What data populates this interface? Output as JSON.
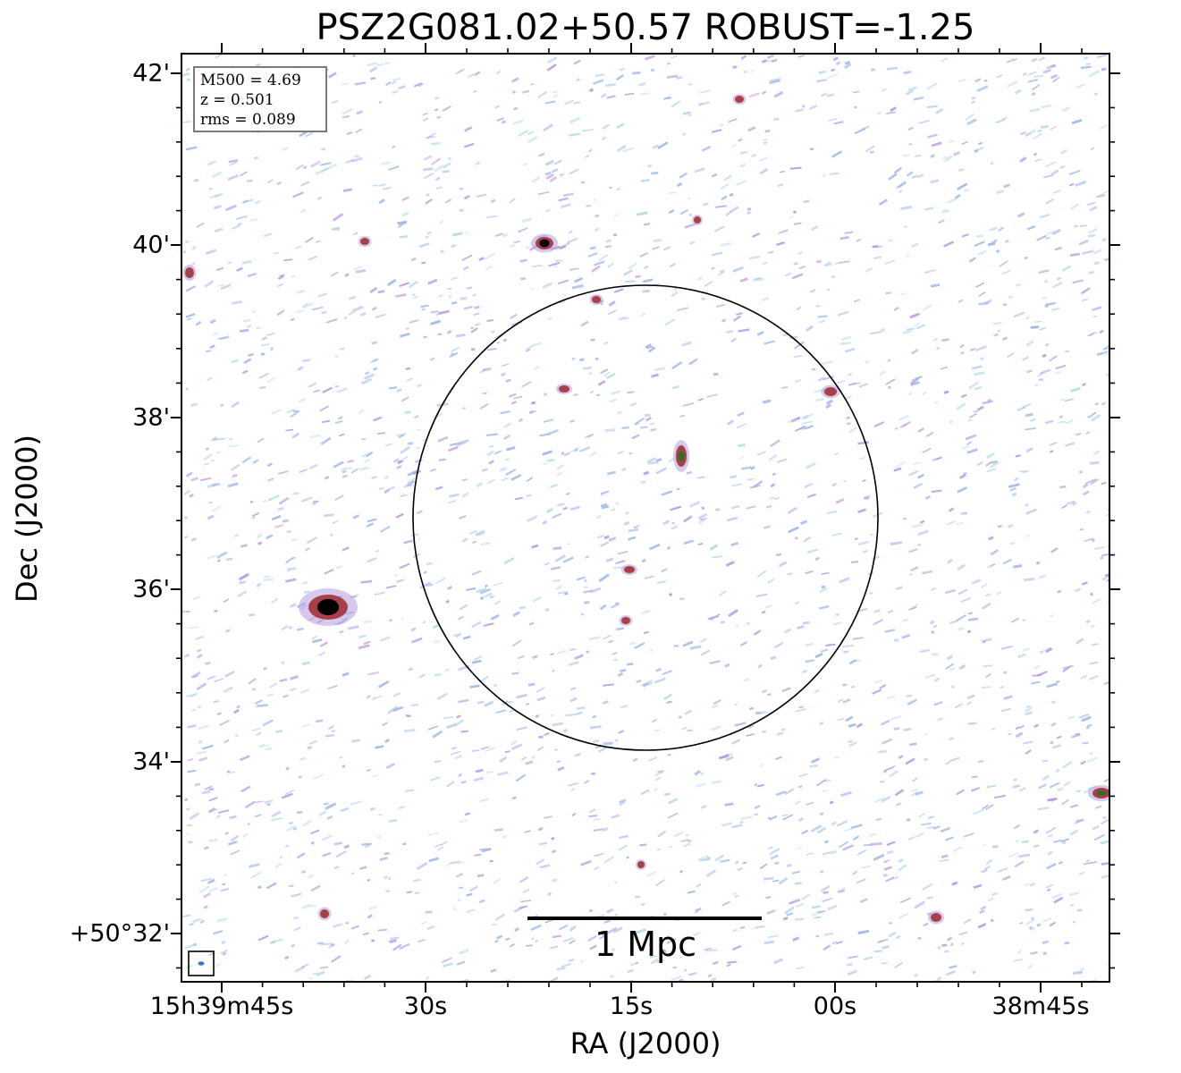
{
  "title": "PSZ2G081.02+50.57 ROBUST=-1.25",
  "axes": {
    "xlabel": "RA (J2000)",
    "ylabel": "Dec (J2000)",
    "xticks": [
      "15h39m45s",
      "30s",
      "15s",
      "00s",
      "38m45s"
    ],
    "yticks": [
      "42'",
      "40'",
      "38'",
      "36'",
      "34'",
      "+50°32'"
    ]
  },
  "info": {
    "m500": "M500 = 4.69",
    "z": "z = 0.501",
    "rms": "rms = 0.089"
  },
  "scalebar": {
    "label": "1 Mpc"
  },
  "colors": {
    "noise_blue": "#9fb8e6",
    "noise_cyan": "#b7dde6",
    "noise_purple": "#b69ae0",
    "source_red": "#a8404a",
    "source_core": "#000000",
    "source_green": "#2f6e2a"
  }
}
